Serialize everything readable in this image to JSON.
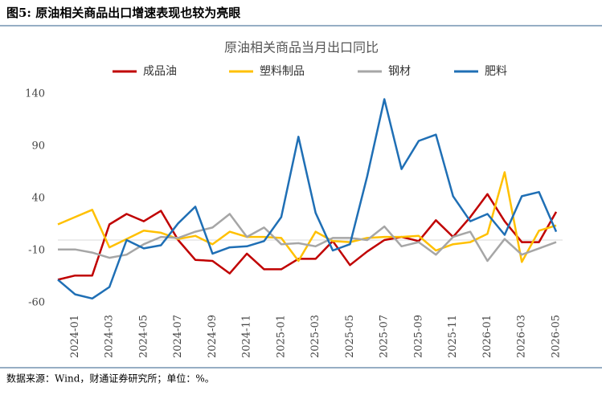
{
  "header": {
    "title": "图5: 原油相关商品出口增速表现也较为亮眼"
  },
  "chart_data": {
    "type": "line",
    "title": "原油相关商品当月出口同比",
    "categories": [
      null,
      "2024-01",
      null,
      "2024-03",
      null,
      "2024-05",
      null,
      "2024-07",
      null,
      "2024-09",
      null,
      "2024-11",
      null,
      "2025-01",
      null,
      "2025-03",
      null,
      "2025-05",
      null,
      "2025-07",
      null,
      "2025-09",
      null,
      "2025-11",
      null,
      "2026-01",
      null,
      "2026-03",
      null,
      "2026-05"
    ],
    "series": [
      {
        "name": "成品油",
        "color": "#c00000",
        "values": [
          -38,
          -34,
          -34,
          15,
          25,
          18,
          28,
          0,
          -19,
          -20,
          -32,
          -13,
          -28,
          -28,
          -18,
          -18,
          -1,
          -24,
          -11,
          0,
          3,
          -1,
          19,
          3,
          22,
          44,
          18,
          -2,
          -2,
          27
        ]
      },
      {
        "name": "塑料制品",
        "color": "#ffc000",
        "values": [
          15,
          22,
          29,
          -7,
          1,
          9,
          7,
          1,
          4,
          -4,
          8,
          3,
          3,
          2,
          -20,
          8,
          -1,
          -2,
          2,
          3,
          3,
          4,
          -10,
          -4,
          -2,
          6,
          65,
          -21,
          9,
          14
        ]
      },
      {
        "name": "钢材",
        "color": "#a6a6a6",
        "values": [
          -9,
          -9,
          -12,
          -17,
          -14,
          -4,
          3,
          2,
          8,
          12,
          25,
          3,
          12,
          -4,
          -3,
          -6,
          2,
          2,
          0,
          13,
          -6,
          -2,
          -14,
          3,
          8,
          -20,
          1,
          -14,
          -8,
          -2
        ]
      },
      {
        "name": "肥料",
        "color": "#1f6fb5",
        "values": [
          -38,
          -52,
          -56,
          -45,
          0,
          -8,
          -5,
          16,
          32,
          -13,
          -7,
          -6,
          -1,
          22,
          99,
          26,
          -10,
          -4,
          61,
          135,
          68,
          95,
          101,
          42,
          18,
          25,
          5,
          42,
          46,
          8
        ]
      }
    ],
    "ylim": [
      -60,
      140
    ],
    "yticks": [
      140,
      90,
      40,
      -10,
      -60
    ],
    "legend": "top"
  },
  "footer": {
    "source": "数据来源：Wind，财通证券研究所；单位：%。"
  }
}
